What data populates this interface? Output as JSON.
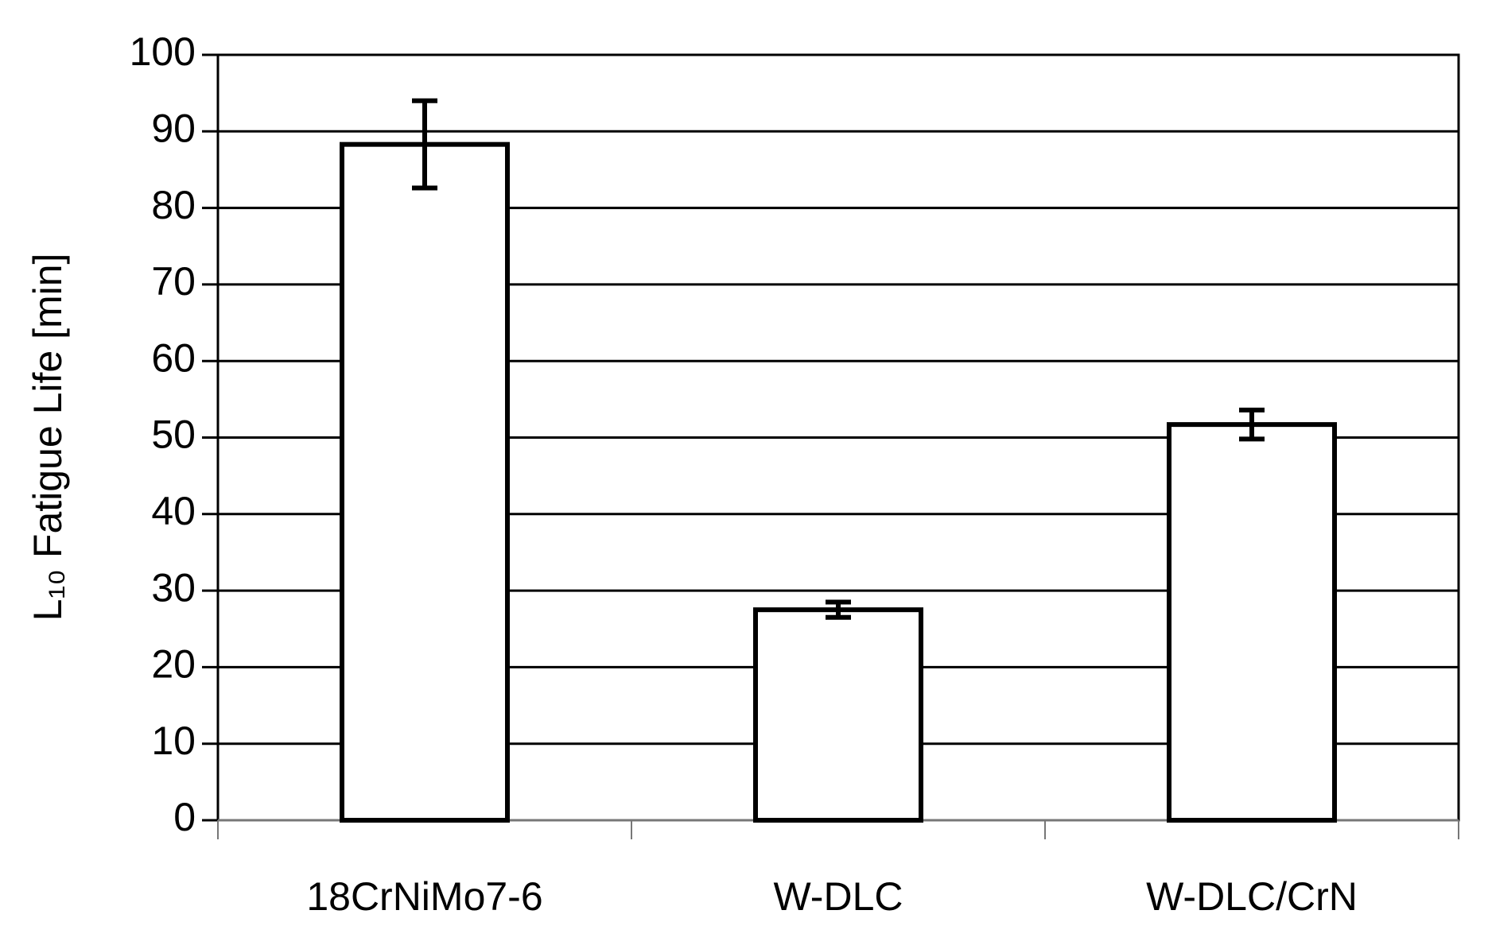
{
  "chart_data": {
    "type": "bar",
    "ylabel": "L₁₀ Fatigue Life [min]",
    "categories": [
      "18CrNiMo7-6",
      "W-DLC",
      "W-DLC/CrN"
    ],
    "values": [
      88.3,
      27.5,
      51.7
    ],
    "errors": [
      5.7,
      1.0,
      1.9
    ],
    "color": "#ffffff",
    "ylim": [
      0,
      100
    ],
    "yticks": [
      0,
      10,
      20,
      30,
      40,
      50,
      60,
      70,
      80,
      90,
      100
    ],
    "grid": true
  }
}
